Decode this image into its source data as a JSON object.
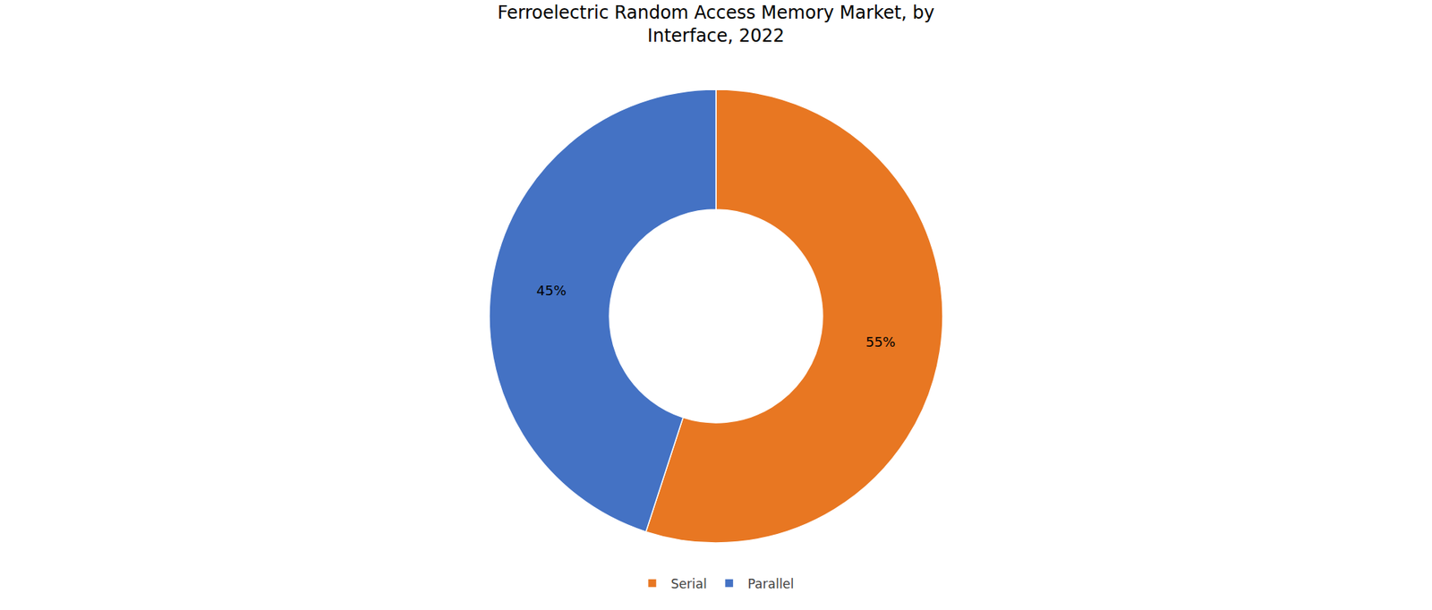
{
  "chart_data": {
    "type": "donut",
    "title": "Ferroelectric Random Access Memory Market, by\nInterface, 2022",
    "categories": [
      "Serial",
      "Parallel"
    ],
    "values": [
      55,
      45
    ],
    "value_labels": [
      "55%",
      "45%"
    ],
    "colors": [
      "#E87722",
      "#4472C4"
    ],
    "data_labels": true,
    "legend": "bottom"
  }
}
